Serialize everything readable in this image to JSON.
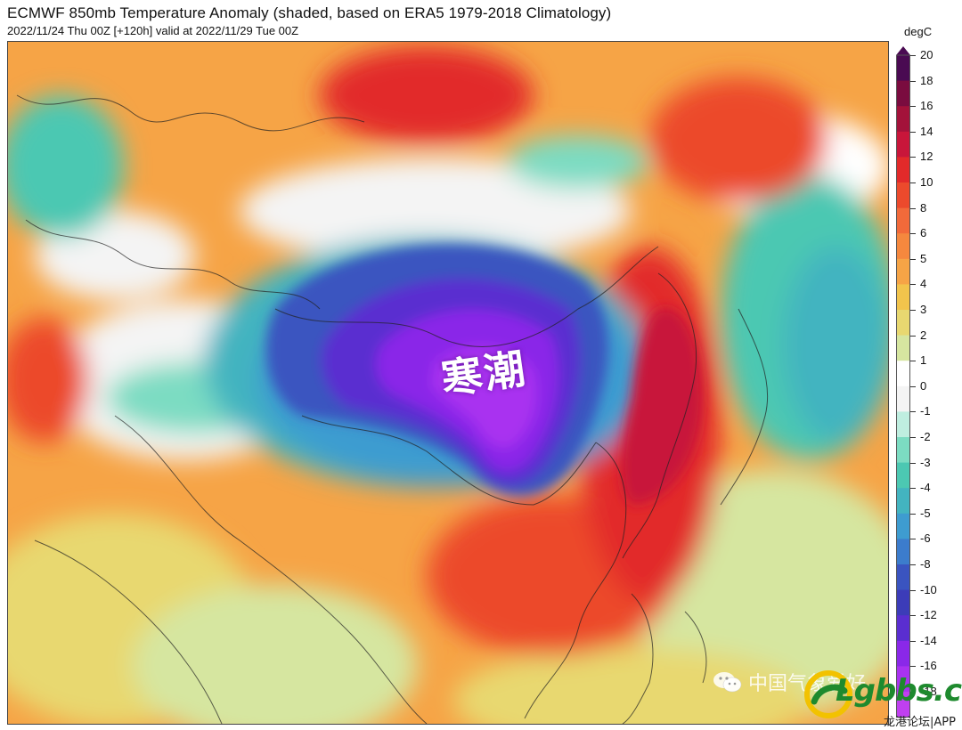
{
  "header": {
    "title": "ECMWF 850mb Temperature Anomaly (shaded, based on ERA5 1979-2018 Climatology)",
    "subtitle": "2022/11/24 Thu 00Z [+120h] valid at 2022/11/29 Tue 00Z"
  },
  "colorbar": {
    "unit": "degC",
    "ticks": [
      "20",
      "18",
      "16",
      "14",
      "12",
      "10",
      "8",
      "6",
      "5",
      "4",
      "3",
      "2",
      "1",
      "0",
      "-1",
      "-2",
      "-3",
      "-4",
      "-5",
      "-6",
      "-8",
      "-10",
      "-12",
      "-14",
      "-16",
      "-18"
    ],
    "colors": [
      "#4a0a52",
      "#7a0c3f",
      "#a3123a",
      "#c8163a",
      "#e22a2a",
      "#ec4a2c",
      "#f26a3a",
      "#f5883e",
      "#f6a446",
      "#f2c44c",
      "#e8d870",
      "#d6e6a0",
      "#ffffff",
      "#f4f4f4",
      "#bfeee0",
      "#7cdcc2",
      "#4cc8b2",
      "#43b4c0",
      "#3e9cd0",
      "#3c7ccc",
      "#3a54c0",
      "#3c3cb8",
      "#5a2ed0",
      "#8a28e8",
      "#a932f0",
      "#c040f0"
    ]
  },
  "map": {
    "label": "寒潮",
    "regions": {
      "cold_core_color": "#8a28e8",
      "cold_edge_color": "#3e9cd0",
      "warm_core_color": "#d8202a",
      "warm_edge_color": "#f5883e",
      "neutral_color": "#f2c44c"
    }
  },
  "watermark": {
    "wechat_text": "中国气象爱好",
    "site_logo": "Lgbbs.cn",
    "site_sub": "龙港论坛|APP"
  }
}
